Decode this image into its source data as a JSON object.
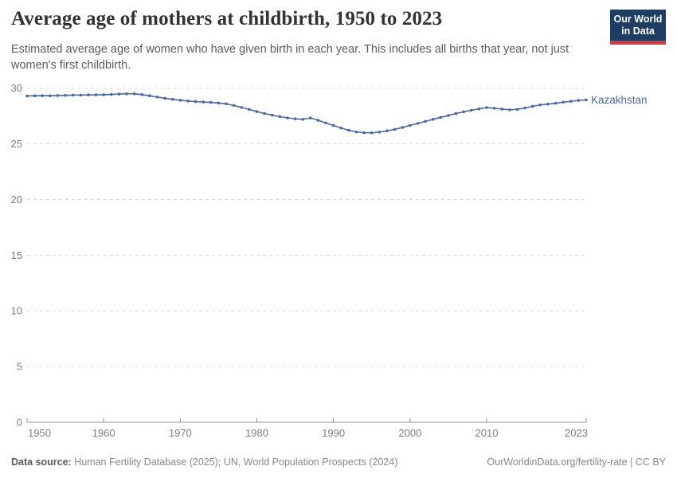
{
  "header": {
    "title": "Average age of mothers at childbirth, 1950 to 2023",
    "subtitle_line1": "Estimated average age of women who have given birth in each year. This includes all births that year, not just",
    "subtitle_line2": "women's first childbirth.",
    "logo": {
      "line1": "Our World",
      "line2": "in Data",
      "bg_color": "#1d3d63",
      "accent_color": "#d6383f"
    }
  },
  "chart_data": {
    "type": "line",
    "title": "Average age of mothers at childbirth, 1950 to 2023",
    "xlabel": "",
    "ylabel": "",
    "start_year": 1950,
    "end_year": 2023,
    "xlim": [
      1950,
      2023
    ],
    "ylim": [
      0,
      30
    ],
    "x_ticks": [
      1950,
      1960,
      1970,
      1980,
      1990,
      2000,
      2010,
      2023
    ],
    "y_ticks": [
      0,
      5,
      10,
      15,
      20,
      25,
      30
    ],
    "grid": "dashed-horizontal",
    "legend_position": "end-of-line-label",
    "series": [
      {
        "name": "Kazakhstan",
        "color": "#4a69a8",
        "values": [
          29.3,
          29.32,
          29.33,
          29.32,
          29.34,
          29.36,
          29.38,
          29.38,
          29.4,
          29.4,
          29.41,
          29.44,
          29.47,
          29.5,
          29.5,
          29.42,
          29.32,
          29.2,
          29.1,
          29.0,
          28.92,
          28.85,
          28.8,
          28.76,
          28.72,
          28.67,
          28.6,
          28.45,
          28.27,
          28.1,
          27.9,
          27.72,
          27.58,
          27.45,
          27.33,
          27.25,
          27.2,
          27.33,
          27.12,
          26.88,
          26.65,
          26.42,
          26.22,
          26.07,
          26.0,
          25.99,
          26.06,
          26.17,
          26.3,
          26.47,
          26.66,
          26.84,
          27.02,
          27.2,
          27.38,
          27.55,
          27.72,
          27.88,
          28.02,
          28.14,
          28.26,
          28.2,
          28.12,
          28.06,
          28.1,
          28.22,
          28.37,
          28.5,
          28.57,
          28.65,
          28.74,
          28.82,
          28.9,
          28.95
        ]
      }
    ]
  },
  "footer": {
    "source_label": "Data source:",
    "source_text": "Human Fertility Database (2025); UN, World Population Prospects (2024)",
    "link_text": "OurWorldinData.org/fertility-rate | CC BY"
  }
}
